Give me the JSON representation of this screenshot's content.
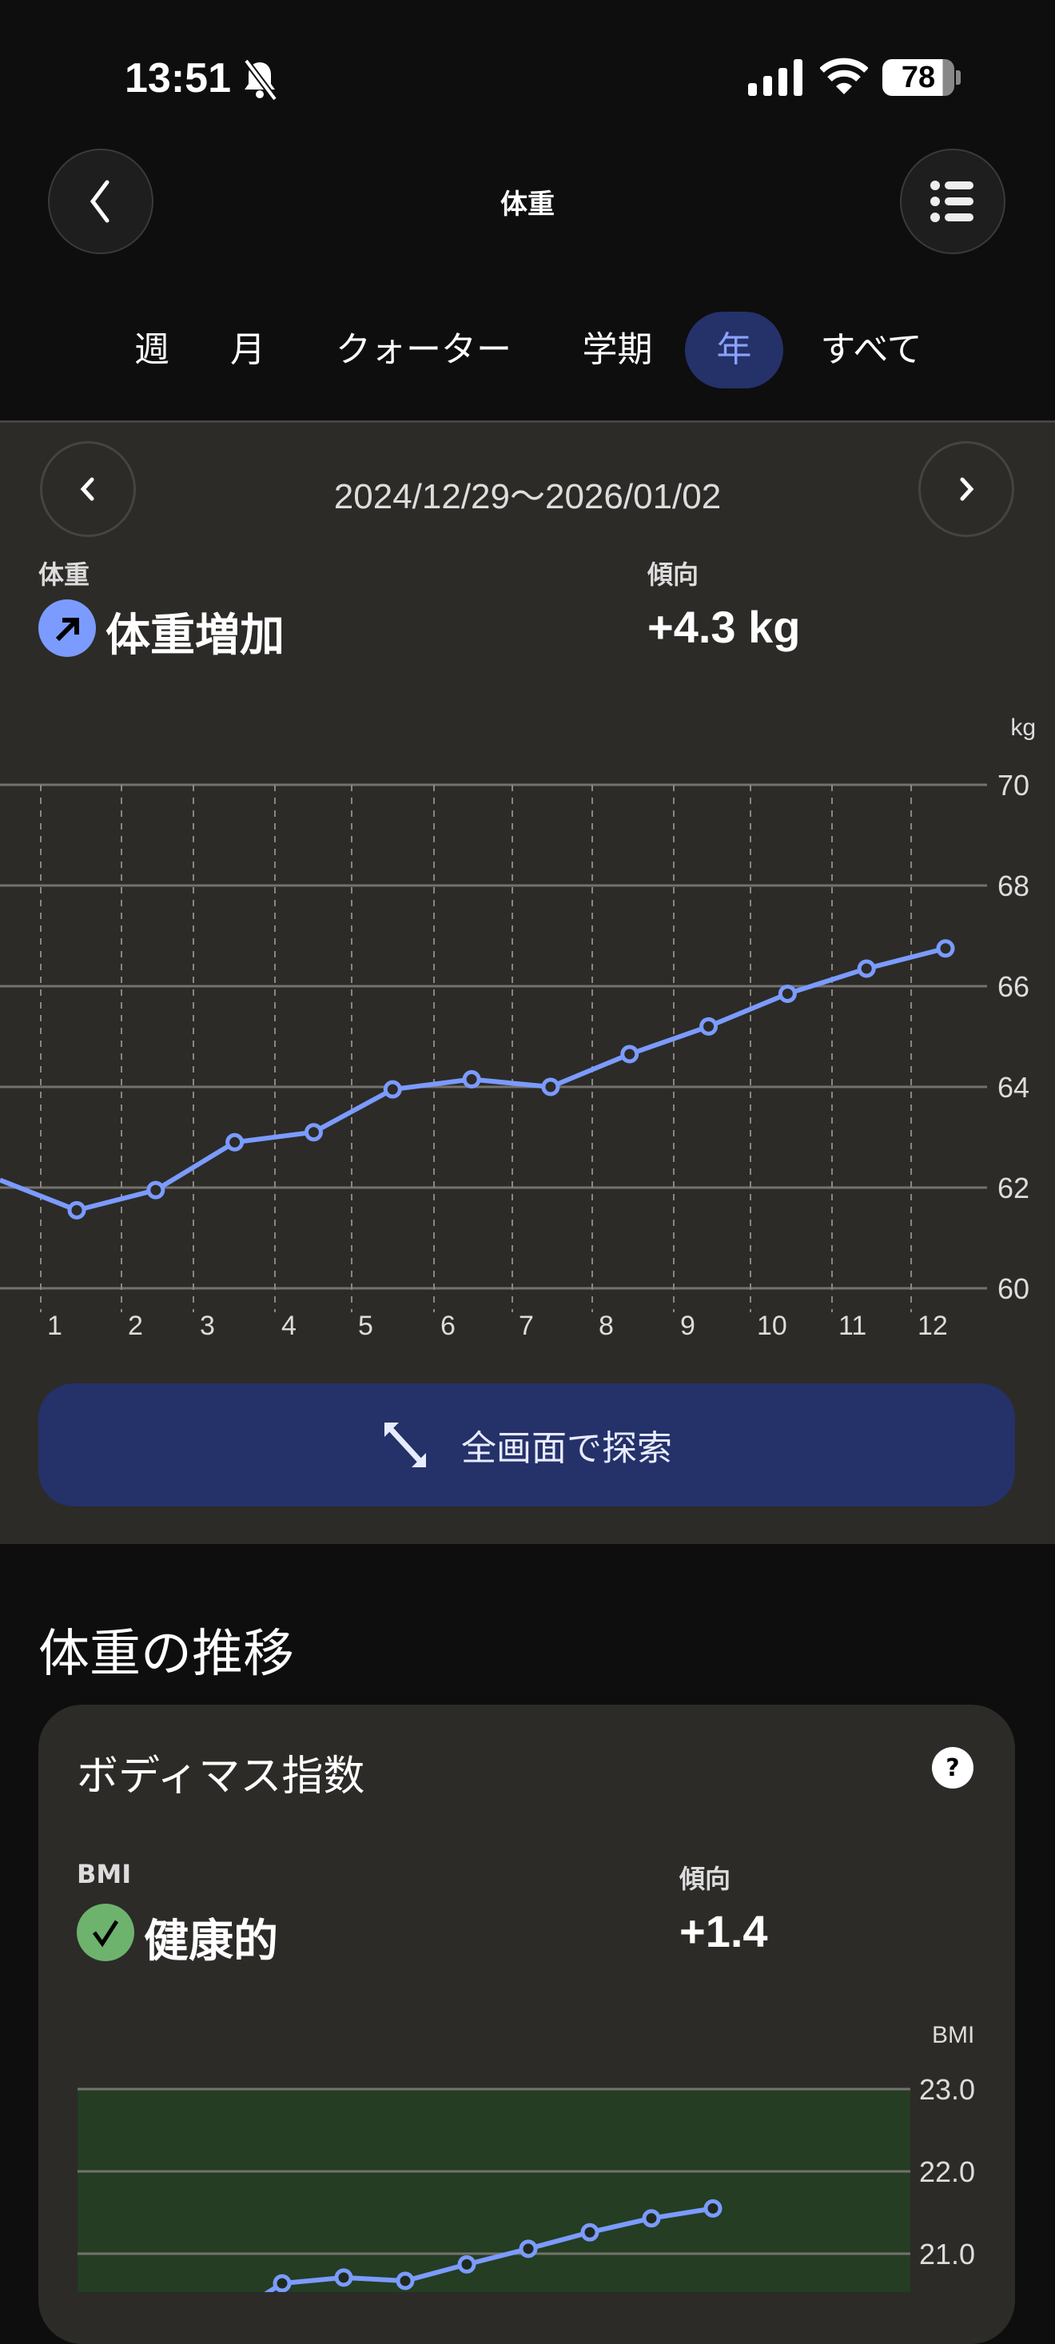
{
  "status_bar": {
    "time": "13:51",
    "battery": "78",
    "icons": [
      "bell-slash-icon",
      "signal-icon",
      "wifi-icon",
      "battery-icon"
    ]
  },
  "header": {
    "title": "体重",
    "back_icon": "chevron-left-icon",
    "menu_icon": "list-icon"
  },
  "tabs": [
    {
      "label": "週",
      "active": false
    },
    {
      "label": "月",
      "active": false
    },
    {
      "label": "クォーター",
      "active": false
    },
    {
      "label": "学期",
      "active": false
    },
    {
      "label": "年",
      "active": true
    },
    {
      "label": "すべて",
      "active": false
    }
  ],
  "period": {
    "range": "2024/12/29〜2026/01/02"
  },
  "summary": {
    "metric_label": "体重",
    "status": "体重増加",
    "trend_label": "傾向",
    "trend_value": "+4.3 kg"
  },
  "colors": {
    "accent": "#7b9bff",
    "button_bg": "#253169",
    "healthy": "#6db36d",
    "panel": "#2c2b28",
    "bmi_zone": "#243d23"
  },
  "explore_button": {
    "label": "全画面で探索",
    "icon": "expand-diagonal-icon"
  },
  "section": {
    "title": "体重の推移"
  },
  "bmi_card": {
    "title": "ボディマス指数",
    "help_icon": "question-icon",
    "metric_label": "BMI",
    "status": "健康的",
    "trend_label": "傾向",
    "trend_value": "+1.4"
  },
  "chart_data": [
    {
      "type": "line",
      "unit_label": "kg",
      "categories": [
        "1",
        "2",
        "3",
        "4",
        "5",
        "6",
        "7",
        "8",
        "9",
        "10",
        "11",
        "12"
      ],
      "prior_value": 62.15,
      "values": [
        61.55,
        61.95,
        62.9,
        63.1,
        63.95,
        64.15,
        64.0,
        64.65,
        65.2,
        65.85,
        66.35,
        66.75
      ],
      "ylim": [
        60,
        70
      ],
      "yticks": [
        "60",
        "62",
        "64",
        "66",
        "68",
        "70"
      ],
      "grid": true
    },
    {
      "type": "line",
      "unit_label": "BMI",
      "values": [
        20.64,
        20.71,
        20.67,
        20.87,
        21.06,
        21.26,
        21.43,
        21.55
      ],
      "yticks": [
        "23.0",
        "22.0",
        "21.0"
      ],
      "grid": true
    }
  ]
}
